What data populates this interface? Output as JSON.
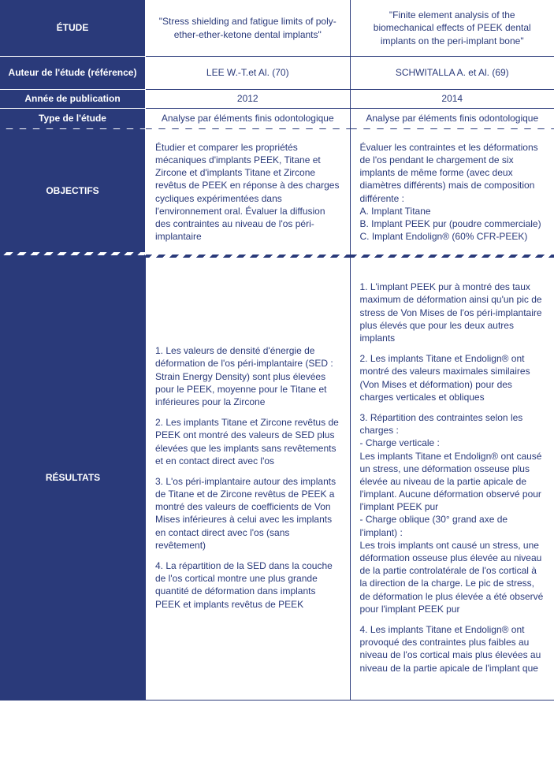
{
  "colors": {
    "header_bg": "#2a3a7a",
    "header_text": "#ffffff",
    "body_text": "#2a3a7a",
    "background": "#ffffff"
  },
  "row_labels": {
    "etude": "ÉTUDE",
    "auteur": "Auteur de l'étude (référence)",
    "annee": "Année de publication",
    "type": "Type de l'étude",
    "objectifs": "OBJECTIFS",
    "resultats": "RÉSULTATS"
  },
  "studies": [
    {
      "title": "\"Stress shielding and fatigue limits of poly-ether-ether-ketone dental implants\"",
      "author": "LEE W.-T.et Al. (70)",
      "year": "2012",
      "type": "Analyse par éléments finis odontologique",
      "objectifs": "Étudier et comparer les propriétés mécaniques d'implants PEEK, Titane et Zircone et d'implants Titane et Zircone revêtus de PEEK en réponse à des charges cycliques expérimentées dans l'environnement oral. Évaluer la diffusion des contraintes au niveau de l'os péri-implantaire",
      "resultats": [
        "1. Les valeurs de densité d'énergie de déformation de l'os péri-implantaire (SED : Strain Energy Density) sont plus élevées pour le PEEK, moyenne pour le Titane et inférieures pour la Zircone",
        "2.  Les implants Titane et Zircone revêtus de PEEK ont montré des valeurs de SED plus élevées que les implants sans revêtements et en contact direct avec l'os",
        "3. L'os péri-implantaire autour des implants de Titane et de Zircone revêtus de PEEK a montré des valeurs de coefficients de Von Mises  inférieures à celui avec les implants en contact direct avec l'os (sans revêtement)",
        "4. La répartition de la SED dans la couche de l'os cortical montre une plus grande quantité de déformation dans implants PEEK et implants revêtus de PEEK"
      ]
    },
    {
      "title": "\"Finite element analysis of the biomechanical effects of PEEK dental implants on the peri-implant bone\"",
      "author": "SCHWITALLA A. et Al. (69)",
      "year": "2014",
      "type": "Analyse par éléments finis odontologique",
      "objectifs": "Évaluer les contraintes et les déformations de l'os pendant le chargement de six implants de même forme (avec deux diamètres différents) mais de composition différente :\nA. Implant Titane\nB. Implant PEEK pur (poudre commerciale)\nC. Implant Endolign® (60% CFR-PEEK)",
      "resultats": [
        "1. L'implant PEEK pur à montré des taux maximum de déformation ainsi qu'un pic de stress de Von Mises de l'os péri-implantaire plus élevés que pour les deux autres implants",
        "2. Les implants Titane et Endolign® ont montré des valeurs maximales similaires (Von Mises et déformation) pour des charges verticales et obliques",
        "3. Répartition des contraintes selon les charges :\n- Charge verticale :\nLes implants Titane et Endolign® ont causé un stress, une déformation osseuse plus élevée au niveau de la partie apicale de l'implant. Aucune déformation observé pour l'implant PEEK pur\n- Charge oblique (30° grand axe de l'implant) :\nLes trois implants ont causé un stress, une déformation osseuse plus élevée au niveau de la partie controlatérale de l'os cortical à la direction de la charge. Le pic de stress, de déformation le plus élevée a été observé pour l'implant PEEK pur",
        "4. Les implants Titane et Endolign® ont provoqué des contraintes plus faibles au niveau de l'os cortical mais plus élevées au niveau de la partie apicale de l'implant que"
      ]
    }
  ]
}
